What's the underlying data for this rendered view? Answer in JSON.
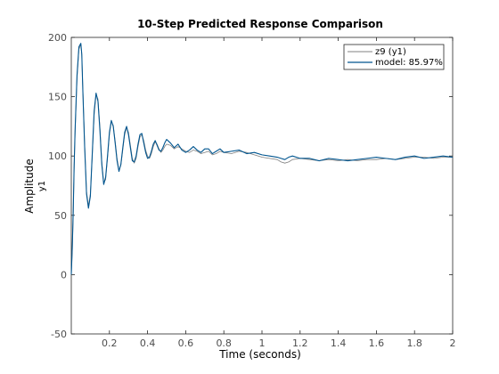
{
  "chart_data": {
    "type": "line",
    "title": "10-Step Predicted Response Comparison",
    "xlabel": "Time (seconds)",
    "ylabel": "Amplitude",
    "ylabel_sub": "y1",
    "xlim": [
      0,
      2
    ],
    "ylim": [
      -50,
      200
    ],
    "xticks": [
      0.2,
      0.4,
      0.6,
      0.8,
      1,
      1.2,
      1.4,
      1.6,
      1.8,
      2
    ],
    "xtick_labels": [
      "0.2",
      "0.4",
      "0.6",
      "0.8",
      "1",
      "1.2",
      "1.4",
      "1.6",
      "1.8",
      "2"
    ],
    "yticks": [
      -50,
      0,
      50,
      100,
      150,
      200
    ],
    "ytick_labels": [
      "-50",
      "0",
      "50",
      "100",
      "150",
      "200"
    ],
    "grid": false,
    "legend_position": "top-right",
    "series": [
      {
        "name": "z9 (y1)",
        "color": "#808080",
        "x": [
          0,
          0.005,
          0.01,
          0.015,
          0.02,
          0.03,
          0.04,
          0.05,
          0.055,
          0.06,
          0.07,
          0.08,
          0.09,
          0.1,
          0.11,
          0.12,
          0.13,
          0.14,
          0.15,
          0.16,
          0.17,
          0.18,
          0.19,
          0.2,
          0.21,
          0.22,
          0.23,
          0.24,
          0.25,
          0.26,
          0.27,
          0.28,
          0.29,
          0.3,
          0.31,
          0.32,
          0.33,
          0.34,
          0.35,
          0.36,
          0.37,
          0.38,
          0.39,
          0.4,
          0.41,
          0.42,
          0.43,
          0.44,
          0.45,
          0.46,
          0.47,
          0.48,
          0.49,
          0.5,
          0.52,
          0.54,
          0.56,
          0.58,
          0.6,
          0.62,
          0.64,
          0.66,
          0.68,
          0.7,
          0.72,
          0.74,
          0.76,
          0.78,
          0.8,
          0.84,
          0.88,
          0.92,
          0.96,
          1.0,
          1.04,
          1.08,
          1.1,
          1.12,
          1.14,
          1.16,
          1.2,
          1.25,
          1.3,
          1.35,
          1.4,
          1.45,
          1.5,
          1.55,
          1.6,
          1.65,
          1.7,
          1.75,
          1.8,
          1.85,
          1.9,
          1.95,
          2.0
        ],
        "y": [
          0,
          20,
          50,
          90,
          120,
          165,
          190,
          194,
          185,
          160,
          110,
          70,
          58,
          68,
          100,
          135,
          152,
          148,
          125,
          95,
          78,
          80,
          98,
          118,
          129,
          126,
          113,
          98,
          88,
          92,
          105,
          118,
          124,
          120,
          109,
          98,
          94,
          98,
          108,
          116,
          118,
          113,
          105,
          100,
          98,
          102,
          108,
          112,
          110,
          106,
          103,
          105,
          108,
          110,
          109,
          106,
          108,
          106,
          104,
          103,
          105,
          104,
          102,
          103,
          104,
          101,
          102,
          104,
          103,
          102,
          104,
          103,
          101,
          99,
          98,
          97,
          95,
          94,
          95,
          97,
          98,
          97,
          96,
          97,
          96,
          97,
          96,
          97,
          97,
          98,
          97,
          98,
          99,
          99,
          98,
          99,
          99
        ]
      },
      {
        "name": "model: 85.97%",
        "color": "#00558f",
        "x": [
          0,
          0.005,
          0.01,
          0.015,
          0.02,
          0.03,
          0.04,
          0.05,
          0.055,
          0.06,
          0.07,
          0.08,
          0.09,
          0.1,
          0.11,
          0.12,
          0.13,
          0.14,
          0.15,
          0.16,
          0.17,
          0.18,
          0.19,
          0.2,
          0.21,
          0.22,
          0.23,
          0.24,
          0.25,
          0.26,
          0.27,
          0.28,
          0.29,
          0.3,
          0.31,
          0.32,
          0.33,
          0.34,
          0.35,
          0.36,
          0.37,
          0.38,
          0.39,
          0.4,
          0.41,
          0.42,
          0.43,
          0.44,
          0.45,
          0.46,
          0.47,
          0.48,
          0.49,
          0.5,
          0.52,
          0.54,
          0.56,
          0.58,
          0.6,
          0.62,
          0.64,
          0.66,
          0.68,
          0.7,
          0.72,
          0.74,
          0.76,
          0.78,
          0.8,
          0.84,
          0.88,
          0.92,
          0.96,
          1.0,
          1.04,
          1.08,
          1.1,
          1.12,
          1.14,
          1.16,
          1.2,
          1.25,
          1.3,
          1.35,
          1.4,
          1.45,
          1.5,
          1.55,
          1.6,
          1.65,
          1.7,
          1.75,
          1.8,
          1.85,
          1.9,
          1.95,
          2.0
        ],
        "y": [
          0,
          22,
          52,
          92,
          122,
          168,
          192,
          195,
          186,
          158,
          108,
          68,
          56,
          66,
          102,
          138,
          153,
          146,
          122,
          93,
          76,
          82,
          100,
          120,
          130,
          125,
          111,
          96,
          87,
          93,
          107,
          120,
          125,
          118,
          107,
          96,
          95,
          100,
          110,
          118,
          119,
          111,
          103,
          98,
          99,
          104,
          110,
          113,
          109,
          105,
          104,
          107,
          111,
          114,
          111,
          107,
          110,
          105,
          103,
          105,
          108,
          105,
          103,
          106,
          106,
          102,
          104,
          106,
          103,
          104,
          105,
          102,
          103,
          101,
          100,
          99,
          98,
          97,
          99,
          100,
          98,
          98,
          96,
          98,
          97,
          96,
          97,
          98,
          99,
          98,
          97,
          99,
          100,
          98,
          99,
          100,
          99
        ]
      }
    ]
  }
}
